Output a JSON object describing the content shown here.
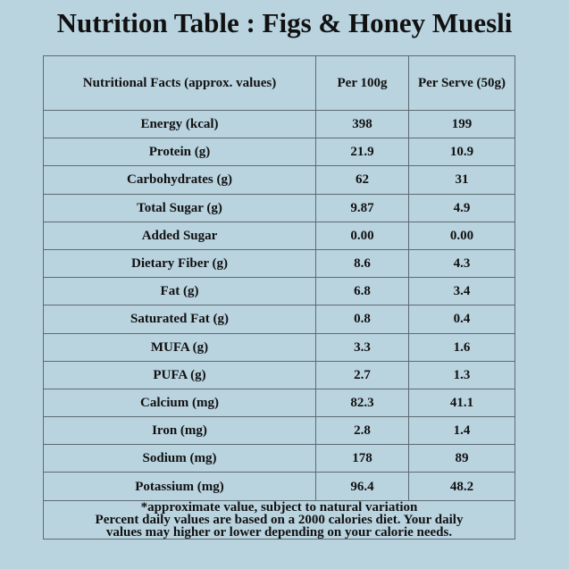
{
  "title": "Nutrition Table : Figs & Honey Muesli",
  "table": {
    "headers": [
      "Nutritional Facts (approx. values)",
      "Per 100g",
      "Per Serve (50g)"
    ],
    "rows": [
      {
        "name": "Energy (kcal)",
        "per100": "398",
        "perServe": "199"
      },
      {
        "name": "Protein (g)",
        "per100": "21.9",
        "perServe": "10.9"
      },
      {
        "name": "Carbohydrates (g)",
        "per100": "62",
        "perServe": "31"
      },
      {
        "name": "Total Sugar (g)",
        "per100": "9.87",
        "perServe": "4.9"
      },
      {
        "name": "Added Sugar",
        "per100": "0.00",
        "perServe": "0.00"
      },
      {
        "name": "Dietary Fiber (g)",
        "per100": "8.6",
        "perServe": "4.3"
      },
      {
        "name": "Fat (g)",
        "per100": "6.8",
        "perServe": "3.4"
      },
      {
        "name": "Saturated Fat (g)",
        "per100": "0.8",
        "perServe": "0.4"
      },
      {
        "name": "MUFA (g)",
        "per100": "3.3",
        "perServe": "1.6"
      },
      {
        "name": "PUFA (g)",
        "per100": "2.7",
        "perServe": "1.3"
      },
      {
        "name": "Calcium (mg)",
        "per100": "82.3",
        "perServe": "41.1"
      },
      {
        "name": "Iron (mg)",
        "per100": "2.8",
        "perServe": "1.4"
      },
      {
        "name": "Sodium (mg)",
        "per100": "178",
        "perServe": "89"
      },
      {
        "name": "Potassium (mg)",
        "per100": "96.4",
        "perServe": "48.2"
      }
    ]
  },
  "footnote": {
    "line1": "*approximate value, subject to natural variation",
    "line2": "Percent daily values are based on a 2000 calories diet. Your daily",
    "line3": "values may higher or lower depending on your calorie needs."
  }
}
